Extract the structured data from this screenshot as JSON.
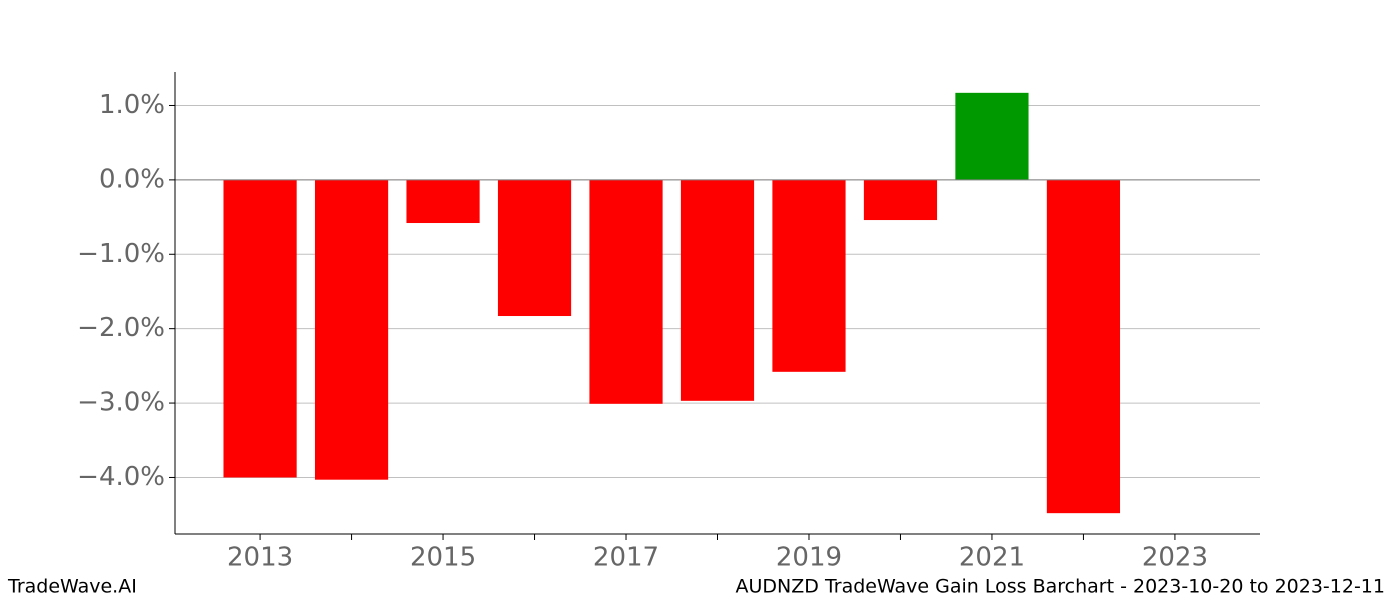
{
  "chart_data": {
    "type": "bar",
    "title": "AUDNZD TradeWave Gain Loss Barchart - 2023-10-20 to 2023-12-11",
    "brand": "TradeWave.AI",
    "x": [
      2013,
      2014,
      2015,
      2016,
      2017,
      2018,
      2019,
      2020,
      2021,
      2022
    ],
    "values": [
      -4.0,
      -4.03,
      -0.58,
      -1.83,
      -3.01,
      -2.97,
      -2.58,
      -0.54,
      1.17,
      -4.48
    ],
    "colors": [
      "#ff0000",
      "#ff0000",
      "#ff0000",
      "#ff0000",
      "#ff0000",
      "#ff0000",
      "#ff0000",
      "#ff0000",
      "#009900",
      "#ff0000"
    ],
    "xlim": [
      2012.07,
      2023.93
    ],
    "xticks": [
      2013,
      2015,
      2017,
      2019,
      2021,
      2023
    ],
    "xminor_ticks": [
      2014,
      2016,
      2018,
      2020,
      2022
    ],
    "ylim": [
      -4.76,
      1.45
    ],
    "yticks": [
      {
        "value": 1,
        "label": "1.0%"
      },
      {
        "value": 0,
        "label": "0.0%"
      },
      {
        "value": -1,
        "label": "−1.0%"
      },
      {
        "value": -2,
        "label": "−2.0%"
      },
      {
        "value": -3,
        "label": "−3.0%"
      },
      {
        "value": -4,
        "label": "−4.0%"
      }
    ],
    "grid": true
  }
}
